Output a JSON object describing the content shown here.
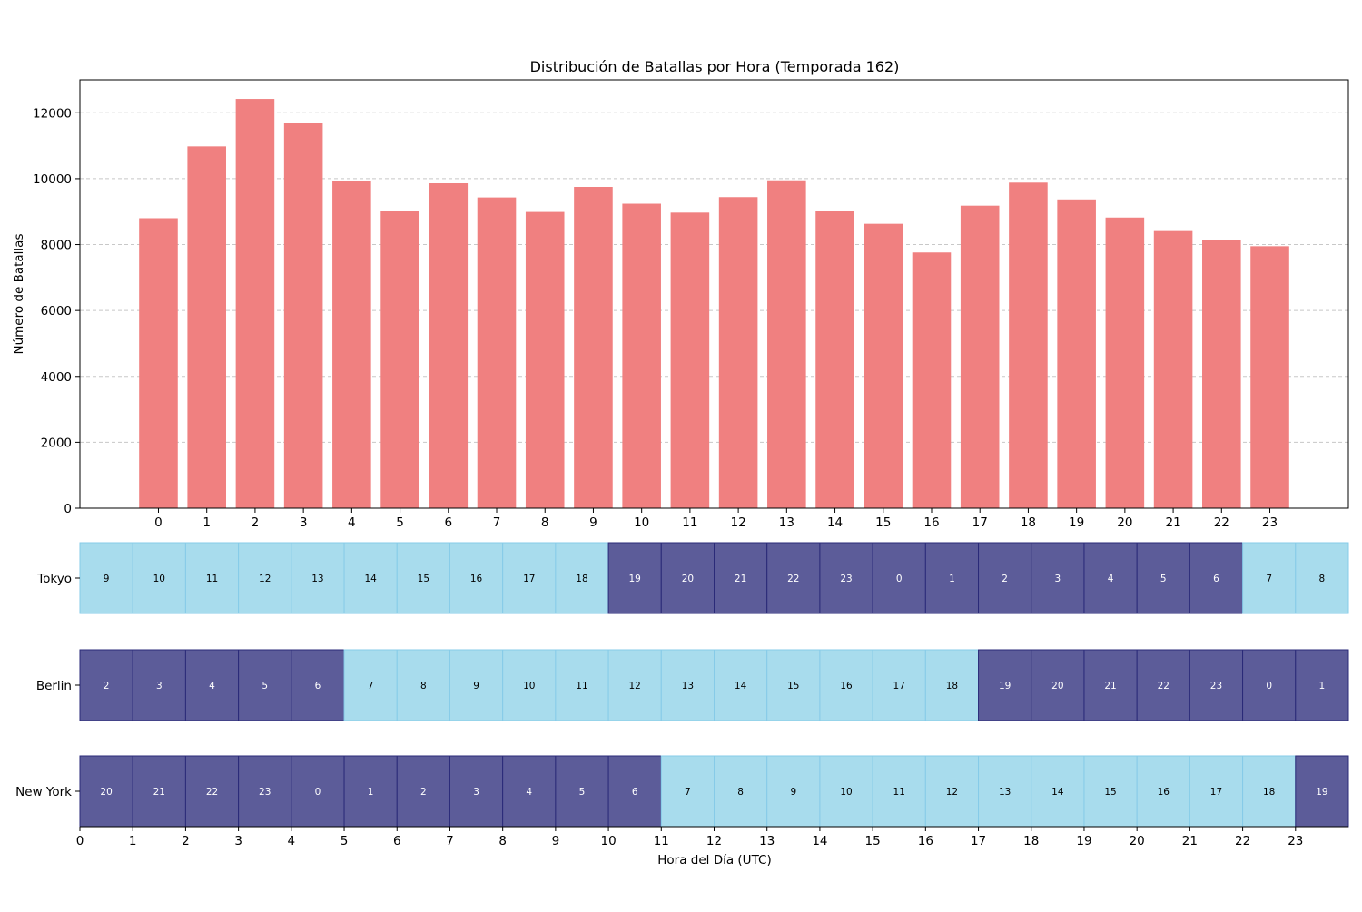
{
  "chart_data": {
    "type": "bar",
    "title": "Distribución de Batallas por Hora (Temporada 162)",
    "ylabel": "Número de Batallas",
    "xlabel": "Hora del Día (UTC)",
    "categories": [
      "0",
      "1",
      "2",
      "3",
      "4",
      "5",
      "6",
      "7",
      "8",
      "9",
      "10",
      "11",
      "12",
      "13",
      "14",
      "15",
      "16",
      "17",
      "18",
      "19",
      "20",
      "21",
      "22",
      "23"
    ],
    "values": [
      8800,
      10980,
      12420,
      11680,
      9920,
      9020,
      9860,
      9430,
      8990,
      9750,
      9240,
      8970,
      9440,
      9950,
      9010,
      8630,
      7760,
      9180,
      9880,
      9370,
      8820,
      8410,
      8150,
      7950
    ],
    "ylim": [
      0,
      13000
    ],
    "yticks": [
      "0",
      "2000",
      "4000",
      "6000",
      "8000",
      "10000",
      "12000"
    ],
    "grid": "y-dashed",
    "bar_color": "#f08080",
    "timezones": {
      "x_ticks": [
        "0",
        "1",
        "2",
        "3",
        "4",
        "5",
        "6",
        "7",
        "8",
        "9",
        "10",
        "11",
        "12",
        "13",
        "14",
        "15",
        "16",
        "17",
        "18",
        "19",
        "20",
        "21",
        "22",
        "23"
      ],
      "day_color": "#a8dced",
      "night_color": "#5c5c99",
      "rows": [
        {
          "name": "Tokyo",
          "hours": [
            "9",
            "10",
            "11",
            "12",
            "13",
            "14",
            "15",
            "16",
            "17",
            "18",
            "19",
            "20",
            "21",
            "22",
            "23",
            "0",
            "1",
            "2",
            "3",
            "4",
            "5",
            "6",
            "7",
            "8"
          ],
          "night": [
            false,
            false,
            false,
            false,
            false,
            false,
            false,
            false,
            false,
            false,
            true,
            true,
            true,
            true,
            true,
            true,
            true,
            true,
            true,
            true,
            true,
            true,
            false,
            false
          ]
        },
        {
          "name": "Berlin",
          "hours": [
            "2",
            "3",
            "4",
            "5",
            "6",
            "7",
            "8",
            "9",
            "10",
            "11",
            "12",
            "13",
            "14",
            "15",
            "16",
            "17",
            "18",
            "19",
            "20",
            "21",
            "22",
            "23",
            "0",
            "1"
          ],
          "night": [
            true,
            true,
            true,
            true,
            true,
            false,
            false,
            false,
            false,
            false,
            false,
            false,
            false,
            false,
            false,
            false,
            false,
            true,
            true,
            true,
            true,
            true,
            true,
            true
          ]
        },
        {
          "name": "New York",
          "hours": [
            "20",
            "21",
            "22",
            "23",
            "0",
            "1",
            "2",
            "3",
            "4",
            "5",
            "6",
            "7",
            "8",
            "9",
            "10",
            "11",
            "12",
            "13",
            "14",
            "15",
            "16",
            "17",
            "18",
            "19"
          ],
          "night": [
            true,
            true,
            true,
            true,
            true,
            true,
            true,
            true,
            true,
            true,
            true,
            false,
            false,
            false,
            false,
            false,
            false,
            false,
            false,
            false,
            false,
            false,
            false,
            true
          ]
        }
      ]
    }
  }
}
